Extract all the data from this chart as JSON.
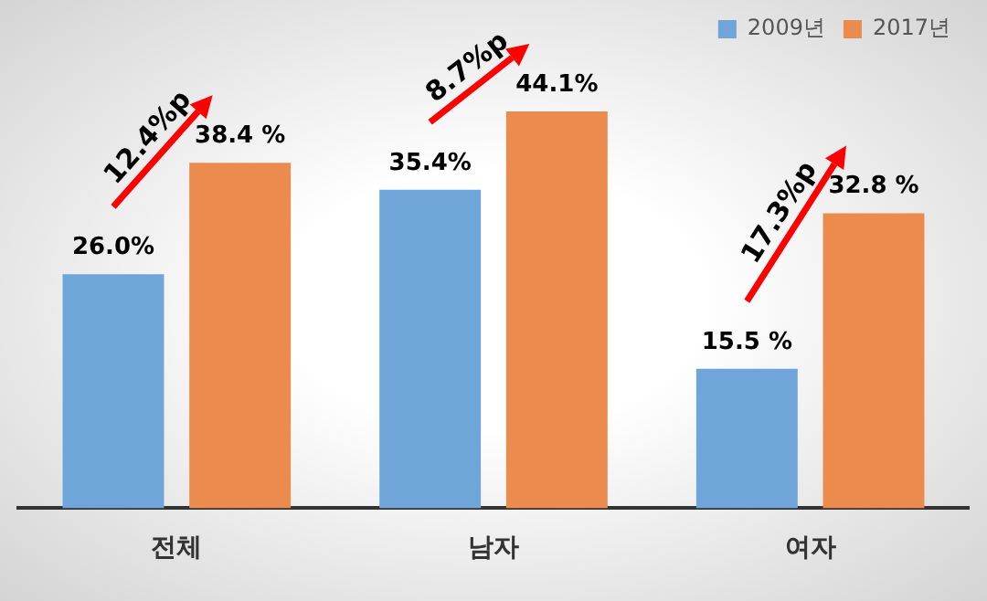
{
  "chart_data": {
    "type": "bar",
    "categories": [
      "전체",
      "남자",
      "여자"
    ],
    "series": [
      {
        "name": "2009년",
        "color": "#6fa5d8",
        "values": [
          26.0,
          35.4,
          15.5
        ],
        "value_labels": [
          "26.0%",
          "35.4%",
          "15.5 %"
        ]
      },
      {
        "name": "2017년",
        "color": "#ec8b4e",
        "values": [
          38.4,
          44.1,
          32.8
        ],
        "value_labels": [
          "38.4 %",
          "44.1%",
          "32.8 %"
        ]
      }
    ],
    "annotations": [
      "12.4%p",
      "8.7%p",
      "17.3%p"
    ],
    "legend": "top right",
    "grid": false,
    "tick_labels": "x"
  }
}
